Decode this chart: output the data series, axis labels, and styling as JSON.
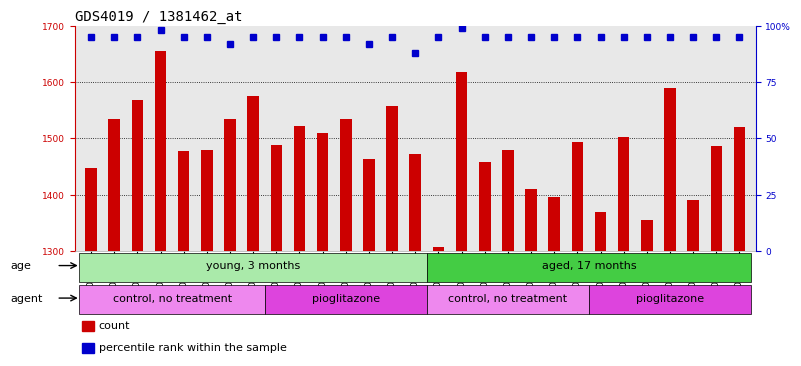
{
  "title": "GDS4019 / 1381462_at",
  "categories": [
    "GSM506974",
    "GSM506975",
    "GSM506976",
    "GSM506977",
    "GSM506978",
    "GSM506979",
    "GSM506980",
    "GSM506981",
    "GSM506982",
    "GSM506983",
    "GSM506984",
    "GSM506985",
    "GSM506986",
    "GSM506987",
    "GSM506988",
    "GSM506989",
    "GSM506990",
    "GSM506991",
    "GSM506992",
    "GSM506993",
    "GSM506994",
    "GSM506995",
    "GSM506996",
    "GSM506997",
    "GSM506998",
    "GSM506999",
    "GSM507000",
    "GSM507001",
    "GSM507002"
  ],
  "bar_values": [
    1448,
    1535,
    1568,
    1655,
    1478,
    1480,
    1535,
    1575,
    1488,
    1522,
    1510,
    1535,
    1463,
    1558,
    1472,
    1307,
    1618,
    1458,
    1480,
    1410,
    1395,
    1493,
    1370,
    1502,
    1355,
    1590,
    1390,
    1487,
    1520
  ],
  "percentile_values": [
    95,
    95,
    95,
    98,
    95,
    95,
    92,
    95,
    95,
    95,
    95,
    95,
    92,
    95,
    88,
    95,
    99,
    95,
    95,
    95,
    95,
    95,
    95,
    95,
    95,
    95,
    95,
    95,
    95
  ],
  "bar_color": "#cc0000",
  "percentile_color": "#0000cc",
  "ylim_left": [
    1300,
    1700
  ],
  "ylim_right": [
    0,
    100
  ],
  "yticks_left": [
    1300,
    1400,
    1500,
    1600,
    1700
  ],
  "yticks_right": [
    0,
    25,
    50,
    75,
    100
  ],
  "ytick_labels_right": [
    "0",
    "25",
    "50",
    "75",
    "100%"
  ],
  "grid_values": [
    1400,
    1500,
    1600
  ],
  "age_groups": [
    {
      "label": "young, 3 months",
      "start": 0,
      "end": 15,
      "color": "#aaeaaa"
    },
    {
      "label": "aged, 17 months",
      "start": 15,
      "end": 29,
      "color": "#44cc44"
    }
  ],
  "agent_groups": [
    {
      "label": "control, no treatment",
      "start": 0,
      "end": 8,
      "color": "#ee88ee"
    },
    {
      "label": "pioglitazone",
      "start": 8,
      "end": 15,
      "color": "#dd44dd"
    },
    {
      "label": "control, no treatment",
      "start": 15,
      "end": 22,
      "color": "#ee88ee"
    },
    {
      "label": "pioglitazone",
      "start": 22,
      "end": 29,
      "color": "#dd44dd"
    }
  ],
  "legend_items": [
    {
      "label": "count",
      "color": "#cc0000"
    },
    {
      "label": "percentile rank within the sample",
      "color": "#0000cc"
    }
  ],
  "age_label": "age",
  "agent_label": "agent",
  "title_fontsize": 10,
  "tick_fontsize": 6.5,
  "label_fontsize": 8,
  "axis_color_left": "#cc0000",
  "axis_color_right": "#0000cc",
  "background_color": "#e8e8e8",
  "bar_width": 0.5
}
